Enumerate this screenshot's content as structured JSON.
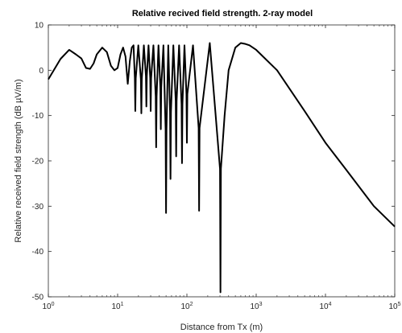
{
  "chart_data": {
    "type": "line",
    "title": "Relative recived field strength. 2-ray model",
    "xlabel": "Distance from Tx (m)",
    "ylabel": "Relative received field  strength  (dB µV/m)",
    "xscale": "log",
    "xlim": [
      1,
      100000
    ],
    "ylim": [
      -50,
      10
    ],
    "grid": false,
    "x_ticks": [
      {
        "value": 1,
        "base": "10",
        "exp": "0"
      },
      {
        "value": 10,
        "base": "10",
        "exp": "1"
      },
      {
        "value": 100,
        "base": "10",
        "exp": "2"
      },
      {
        "value": 1000,
        "base": "10",
        "exp": "3"
      },
      {
        "value": 10000,
        "base": "10",
        "exp": "4"
      },
      {
        "value": 100000,
        "base": "10",
        "exp": "5"
      }
    ],
    "y_ticks": [
      10,
      0,
      -10,
      -20,
      -30,
      -40,
      -50
    ],
    "series": [
      {
        "color": "#000000",
        "x": [
          1,
          1.5,
          2,
          2.5,
          3,
          3.5,
          4,
          4.5,
          5,
          6,
          7,
          8,
          9,
          10,
          11,
          12,
          13,
          14,
          15,
          16,
          18,
          20,
          25,
          30,
          40,
          50,
          60,
          80,
          100,
          120,
          150,
          200,
          250,
          300,
          350,
          400,
          500,
          600,
          700,
          800,
          1000,
          2000,
          5000,
          10000,
          20000,
          50000,
          100000
        ],
        "y": [
          -2,
          2.5,
          4.5,
          3.5,
          2.6,
          0.5,
          0.3,
          1.5,
          3.5,
          5,
          4,
          1,
          0,
          0.5,
          3.5,
          5,
          3,
          -3,
          2,
          5,
          -9,
          5,
          -9.5,
          5.5,
          -17,
          5.5,
          -31.5,
          5.5,
          -24,
          5.5,
          -31,
          6,
          0,
          -49,
          -10,
          0,
          5,
          6,
          5.8,
          5.5,
          4.5,
          0,
          -9,
          -16,
          -22,
          -30,
          -34.5
        ],
        "dips": [
          {
            "x": 18,
            "y": -9
          },
          {
            "x": 22,
            "y": -9.5
          },
          {
            "x": 26,
            "y": -8
          },
          {
            "x": 30,
            "y": -9
          },
          {
            "x": 36,
            "y": -17
          },
          {
            "x": 42,
            "y": -13
          },
          {
            "x": 50,
            "y": -31.5
          },
          {
            "x": 58,
            "y": -24
          },
          {
            "x": 70,
            "y": -19
          },
          {
            "x": 85,
            "y": -20.5
          },
          {
            "x": 100,
            "y": -16
          },
          {
            "x": 150,
            "y": -31
          },
          {
            "x": 305,
            "y": -49
          }
        ]
      }
    ]
  }
}
